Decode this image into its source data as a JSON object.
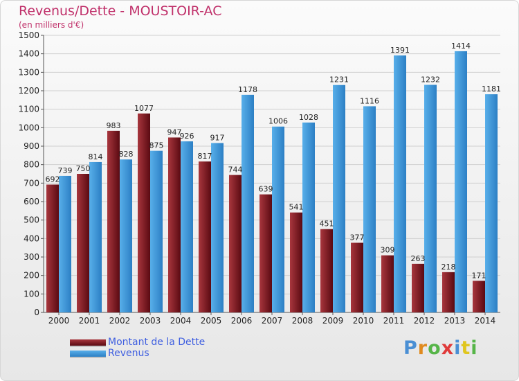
{
  "header": {
    "title": "Revenus/Dette - MOUSTOIR-AC",
    "subtitle": "(en milliers d'€)"
  },
  "logo": {
    "text": "Proxiti",
    "letter_colors": [
      "#4a8fd4",
      "#e08a1e",
      "#56b548",
      "#e03a3a",
      "#4a8fd4",
      "#e0c61e",
      "#56b548"
    ]
  },
  "colors": {
    "dette_dark": "#5a0a12",
    "dette_light": "#a8363d",
    "revenus_dark": "#2c7fc4",
    "revenus_light": "#58afea",
    "grid": "#cfcfcf",
    "axis_text": "#222222"
  },
  "chart_data": {
    "type": "bar",
    "title": "Revenus/Dette - MOUSTOIR-AC",
    "subtitle": "(en milliers d'€)",
    "categories": [
      "2000",
      "2001",
      "2002",
      "2003",
      "2004",
      "2005",
      "2006",
      "2007",
      "2008",
      "2009",
      "2010",
      "2011",
      "2012",
      "2013",
      "2014"
    ],
    "series": [
      {
        "name": "Montant de la Dette",
        "values": [
          692,
          750,
          983,
          1077,
          947,
          817,
          744,
          639,
          541,
          451,
          377,
          309,
          263,
          218,
          171
        ]
      },
      {
        "name": "Revenus",
        "values": [
          739,
          814,
          828,
          875,
          926,
          917,
          1178,
          1006,
          1028,
          1231,
          1116,
          1391,
          1232,
          1414,
          1181
        ]
      }
    ],
    "ylim": [
      0,
      1500
    ],
    "yticks": [
      0,
      100,
      200,
      300,
      400,
      500,
      600,
      700,
      800,
      900,
      1000,
      1100,
      1200,
      1300,
      1400,
      1500
    ],
    "grid": true,
    "legend_position": "bottom-left"
  }
}
